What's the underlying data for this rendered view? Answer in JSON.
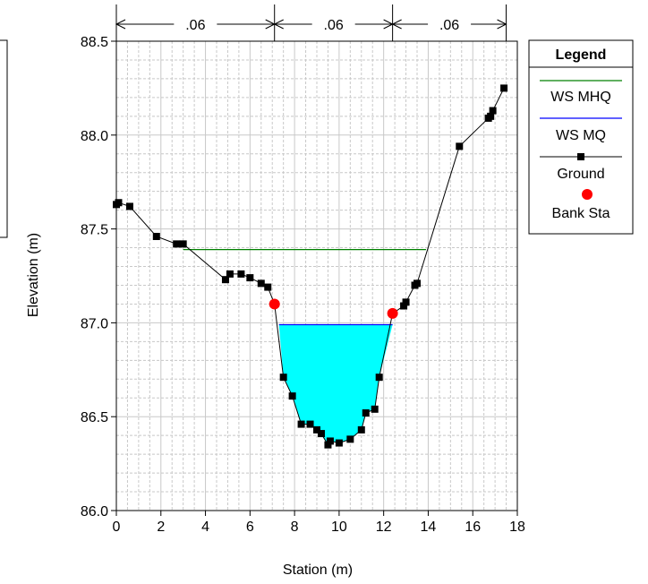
{
  "chart_data": {
    "type": "line",
    "xlabel": "Station (m)",
    "ylabel": "Elevation (m)",
    "xlim": [
      0,
      18
    ],
    "ylim": [
      86.0,
      88.5
    ],
    "x_ticks": [
      0,
      2,
      4,
      6,
      8,
      10,
      12,
      14,
      16,
      18
    ],
    "y_ticks": [
      86.0,
      86.5,
      87.0,
      87.5,
      88.0,
      88.5
    ],
    "y_tick_labels": [
      "86.0",
      "86.5",
      "87.0",
      "87.5",
      "88.0",
      "88.5"
    ],
    "grid": true,
    "legend_position": "right",
    "manning_n": {
      "labels": [
        ".06",
        ".06",
        ".06"
      ],
      "breaks": [
        0,
        7.1,
        12.4,
        17.5
      ]
    },
    "series": [
      {
        "name": "Ground",
        "kind": "line-markers",
        "color": "#000000",
        "x": [
          0.0,
          0.1,
          0.6,
          1.8,
          2.7,
          3.0,
          4.9,
          5.1,
          5.6,
          6.0,
          6.5,
          6.8,
          7.1,
          7.5,
          7.9,
          8.3,
          8.7,
          9.0,
          9.2,
          9.5,
          9.6,
          10.0,
          10.5,
          11.0,
          11.2,
          11.6,
          11.8,
          12.4,
          12.9,
          13.0,
          13.4,
          13.5,
          15.4,
          16.7,
          16.8,
          16.9,
          17.4
        ],
        "y": [
          87.63,
          87.64,
          87.62,
          87.46,
          87.42,
          87.42,
          87.23,
          87.26,
          87.26,
          87.24,
          87.21,
          87.19,
          87.1,
          86.71,
          86.61,
          86.46,
          86.46,
          86.43,
          86.41,
          86.35,
          86.37,
          86.36,
          86.38,
          86.43,
          86.52,
          86.54,
          86.71,
          87.05,
          87.09,
          87.11,
          87.2,
          87.21,
          87.94,
          88.09,
          88.1,
          88.13,
          88.25
        ]
      },
      {
        "name": "WS MHQ",
        "kind": "water-surface",
        "color": "#008000",
        "elevation": 87.39,
        "x_range": [
          3.0,
          13.9
        ]
      },
      {
        "name": "WS MQ",
        "kind": "water-surface",
        "color": "#0000ff",
        "fill": "#00ffff",
        "elevation": 86.99,
        "x_range": [
          7.3,
          12.4
        ]
      },
      {
        "name": "Bank Sta",
        "kind": "points",
        "color": "#ff0000",
        "x": [
          7.1,
          12.4
        ],
        "y": [
          87.1,
          87.05
        ]
      }
    ],
    "legend": {
      "title": "Legend",
      "entries": [
        "WS MHQ",
        "WS MQ",
        "Ground",
        "Bank Sta"
      ]
    }
  }
}
